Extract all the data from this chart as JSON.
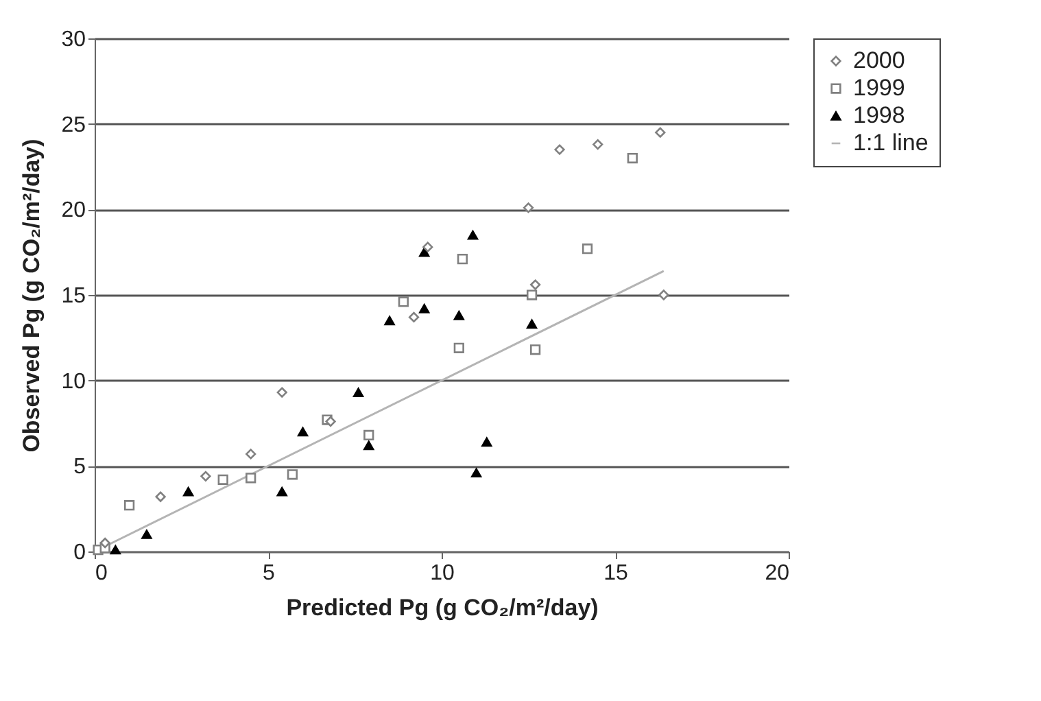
{
  "chart_data": {
    "type": "scatter",
    "xlabel": "Predicted Pg (g CO₂/m²/day)",
    "ylabel": "Observed Pg (g CO₂/m²/day)",
    "xlim": [
      0,
      20
    ],
    "xticks": [
      0,
      5,
      10,
      15,
      20
    ],
    "ylim": [
      0,
      30
    ],
    "yticks": [
      0,
      5,
      10,
      15,
      20,
      25,
      30
    ],
    "grid": "y",
    "legend": "right",
    "series": [
      {
        "name": "2000",
        "color": "#808080",
        "marker": "diamond",
        "x": [
          0.3,
          1.9,
          3.2,
          4.5,
          5.4,
          6.8,
          9.2,
          9.6,
          12.5,
          12.7,
          13.4,
          14.5,
          16.3,
          16.4
        ],
        "values": [
          0.5,
          3.2,
          4.4,
          5.7,
          9.3,
          7.6,
          13.7,
          17.8,
          20.1,
          15.6,
          23.5,
          23.8,
          24.5,
          15.0
        ]
      },
      {
        "name": "1999",
        "color": "#808080",
        "marker": "square",
        "x": [
          0.1,
          0.3,
          1.0,
          3.7,
          4.5,
          5.7,
          6.7,
          7.9,
          8.9,
          10.5,
          10.6,
          12.6,
          12.7,
          14.2,
          15.5
        ],
        "values": [
          0.1,
          0.2,
          2.7,
          4.2,
          4.3,
          4.5,
          7.7,
          6.8,
          14.6,
          11.9,
          17.1,
          15.0,
          11.8,
          17.7,
          23.0
        ]
      },
      {
        "name": "1998",
        "color": "#000000",
        "marker": "triangle",
        "x": [
          0.6,
          1.5,
          2.7,
          5.4,
          6.0,
          7.6,
          7.9,
          8.5,
          9.5,
          9.5,
          10.5,
          10.9,
          11.0,
          11.3,
          12.6
        ],
        "values": [
          0.1,
          1.0,
          3.5,
          3.5,
          7.0,
          9.3,
          6.2,
          13.5,
          14.2,
          17.5,
          13.8,
          18.5,
          4.6,
          6.4,
          13.3
        ]
      },
      {
        "name": "1:1 line",
        "type": "line",
        "color": "#b4b4b4",
        "x": [
          0,
          16.4
        ],
        "values": [
          0,
          16.4
        ]
      }
    ]
  }
}
